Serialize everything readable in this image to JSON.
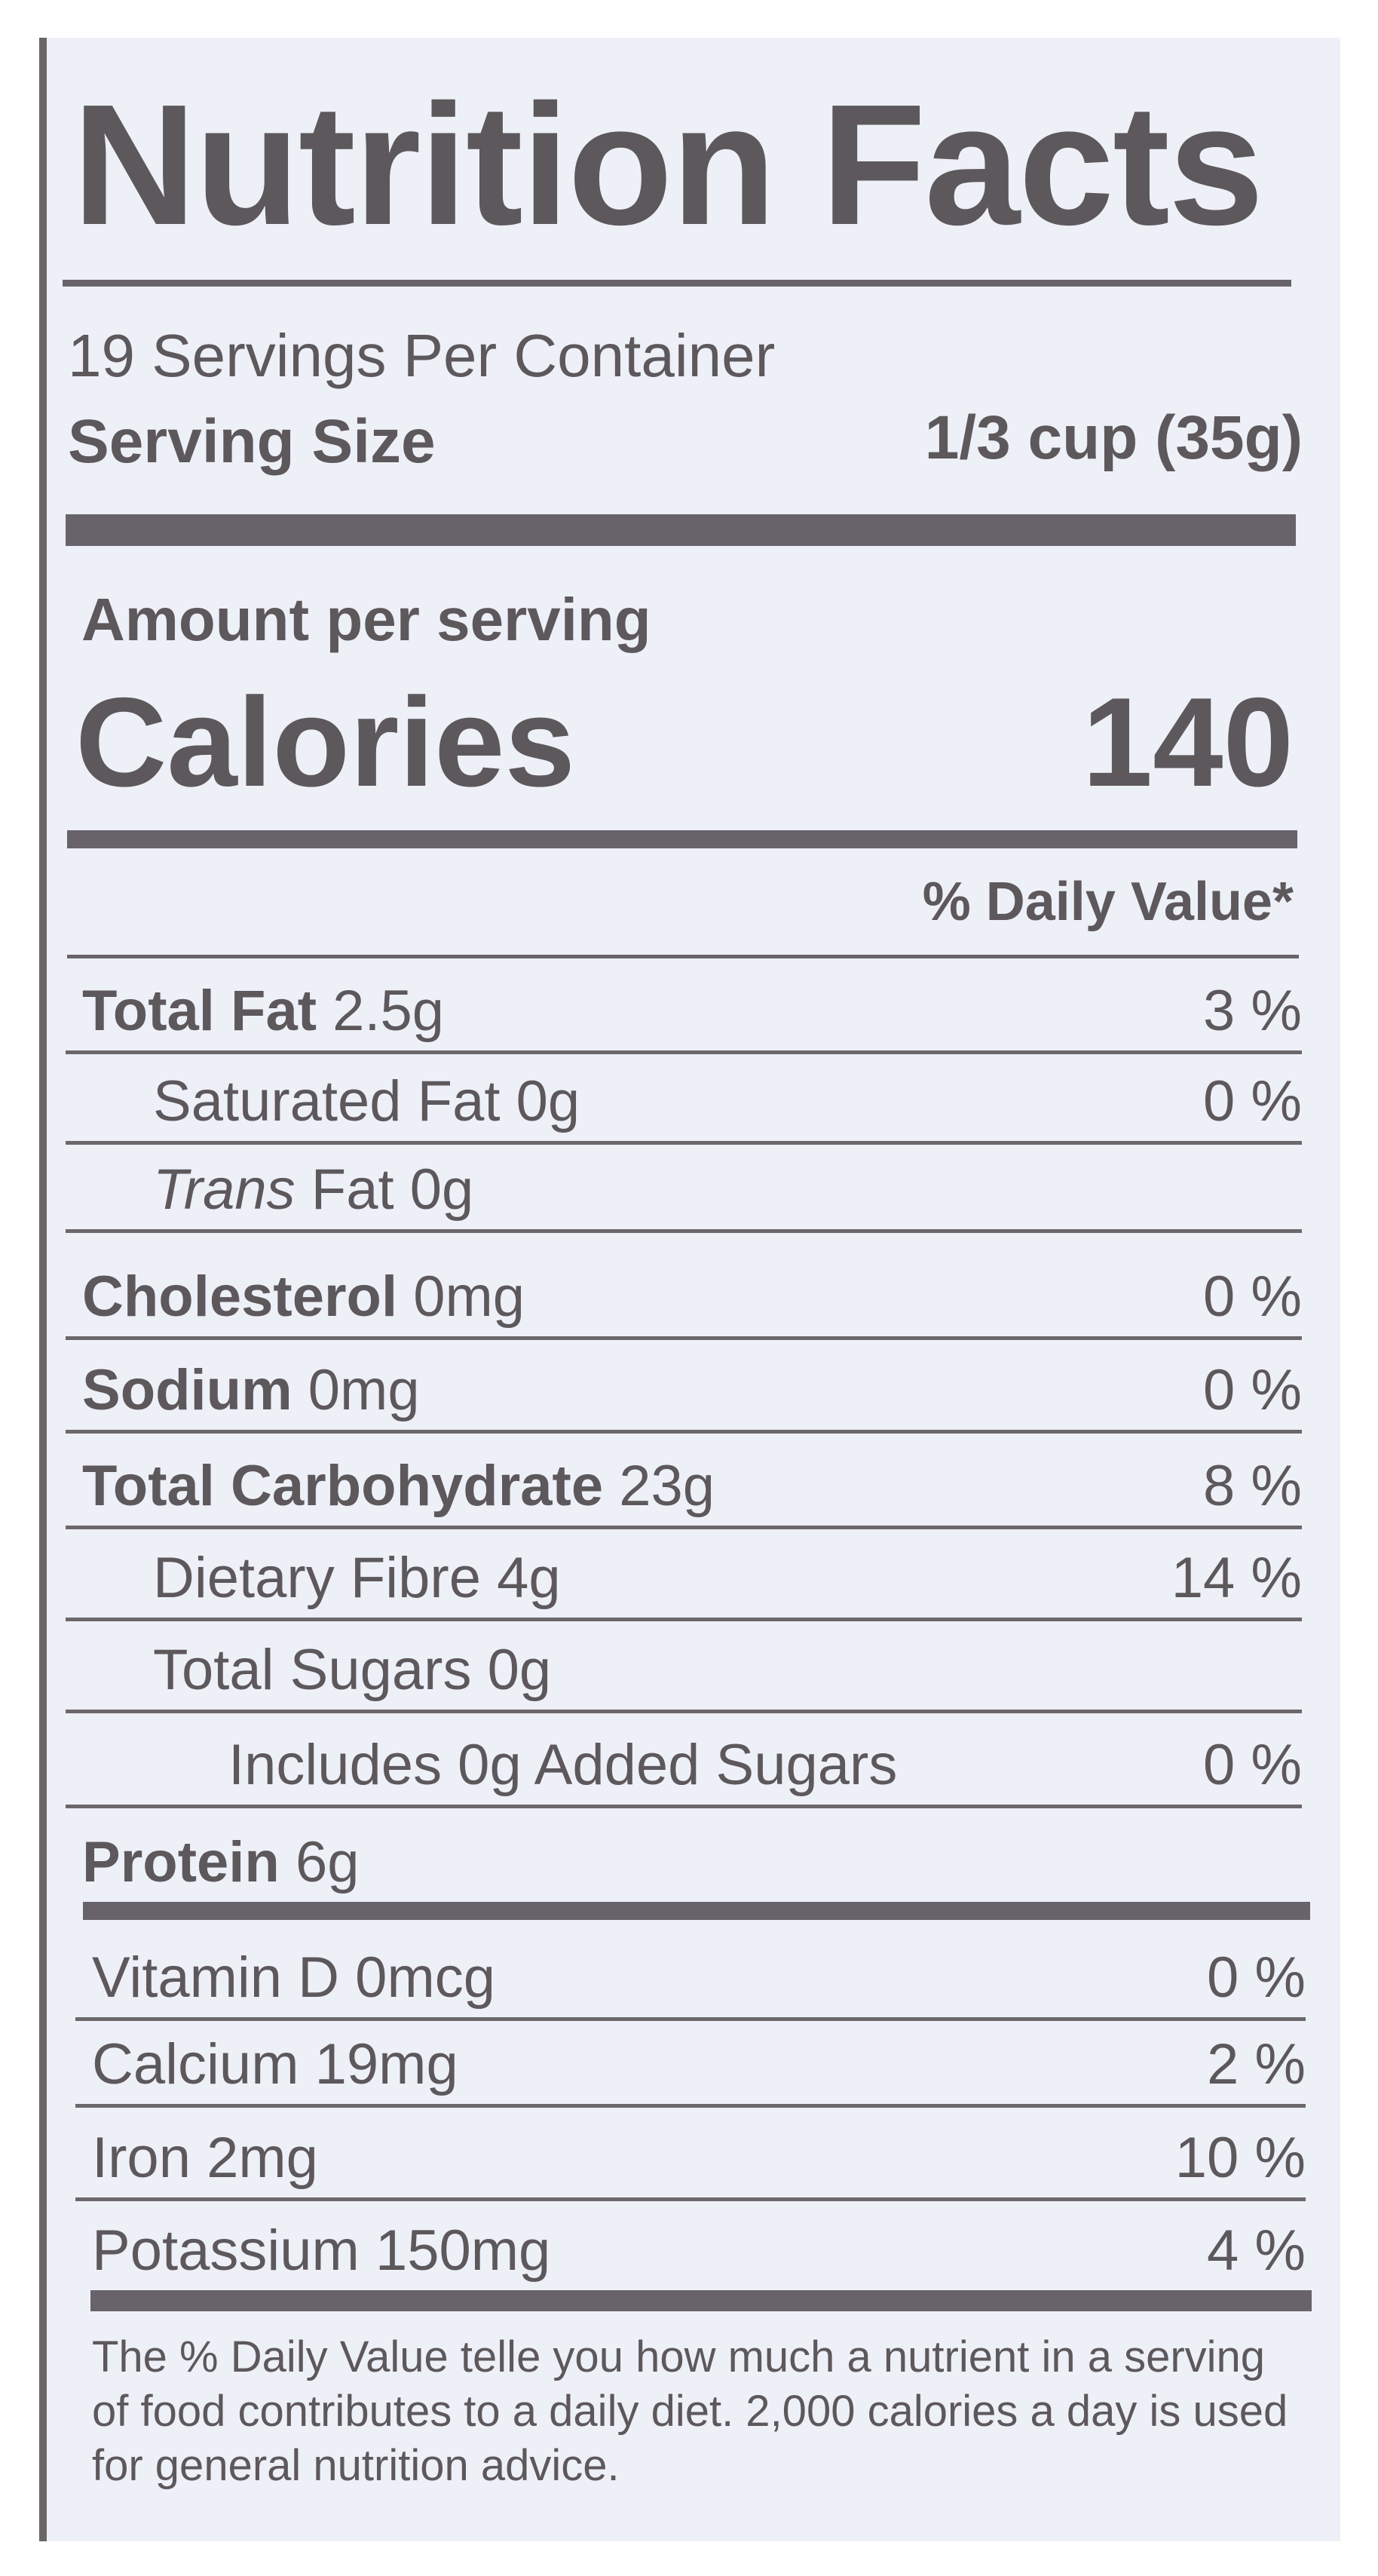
{
  "title": "Nutrition Facts",
  "servings_per_container": "19 Servings Per Container",
  "serving_size": {
    "label": "Serving Size",
    "value": "1/3 cup (35g)"
  },
  "amount_per_serving": "Amount per serving",
  "calories": {
    "label": "Calories",
    "value": "140"
  },
  "daily_value_header": "% Daily Value*",
  "nutrients": [
    {
      "name": "Total Fat",
      "amount": "2.5g",
      "dv": "3 %"
    },
    {
      "name": "Saturated Fat",
      "amount": "0g",
      "dv": "0 %"
    },
    {
      "name": "Trans",
      "amount": "Fat 0g",
      "dv": ""
    },
    {
      "name": "Cholesterol",
      "amount": "0mg",
      "dv": "0 %"
    },
    {
      "name": "Sodium",
      "amount": "0mg",
      "dv": "0 %"
    },
    {
      "name": "Total Carbohydrate",
      "amount": "23g",
      "dv": "8 %"
    },
    {
      "name": "Dietary Fibre",
      "amount": "4g",
      "dv": "14 %"
    },
    {
      "name": "Total Sugars",
      "amount": "0g",
      "dv": ""
    },
    {
      "name": "Includes 0g Added Sugars",
      "amount": "",
      "dv": "0 %"
    },
    {
      "name": "Protein",
      "amount": "6g",
      "dv": ""
    }
  ],
  "micronutrients": [
    {
      "name": "Vitamin D",
      "amount": "0mcg",
      "dv": "0 %"
    },
    {
      "name": "Calcium",
      "amount": "19mg",
      "dv": "2 %"
    },
    {
      "name": "Iron",
      "amount": "2mg",
      "dv": "10 %"
    },
    {
      "name": "Potassium",
      "amount": "150mg",
      "dv": "4 %"
    }
  ],
  "footnote": "The % Daily Value telle you how much a nutrient in a serving of food contributes to a daily diet. 2,000 calories a day is used for general nutrition advice.",
  "colors": {
    "text": "#5d585b",
    "background": "#eef0f8",
    "rules": "#68636a"
  }
}
